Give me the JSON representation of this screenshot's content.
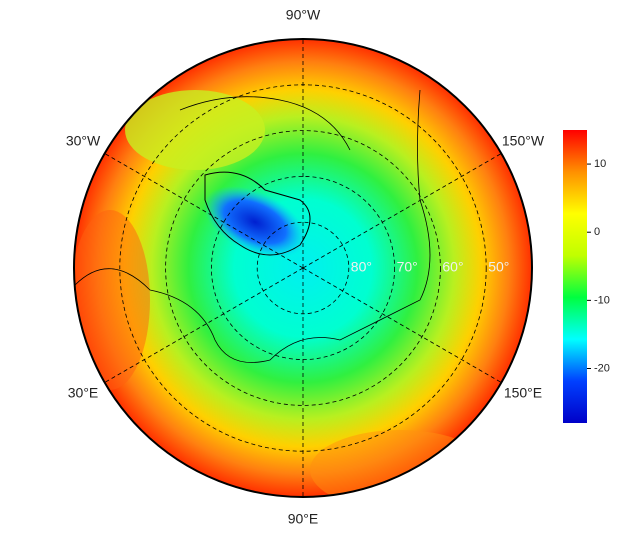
{
  "map": {
    "longitude_labels": [
      {
        "lon": -90,
        "label": "90°W"
      },
      {
        "lon": -30,
        "label": "30°W"
      },
      {
        "lon": -150,
        "label": "150°W"
      },
      {
        "lon": 30,
        "label": "30°E"
      },
      {
        "lon": 150,
        "label": "150°E"
      },
      {
        "lon": 90,
        "label": "90°E"
      }
    ],
    "latitude_circles": [
      {
        "value": 80,
        "label": "80°"
      },
      {
        "value": 70,
        "label": "70°"
      },
      {
        "value": 60,
        "label": "60°"
      },
      {
        "value": 50,
        "label": "50°"
      }
    ],
    "lat_limit": 40,
    "colorbar": {
      "lim": [
        -28,
        15
      ],
      "ticks": [
        -20,
        -10,
        0,
        10
      ],
      "colors": [
        "#0000c8",
        "#0040ff",
        "#00ffff",
        "#00ff40",
        "#c0ff00",
        "#ffff00",
        "#ff9000",
        "#ff0000"
      ]
    }
  }
}
